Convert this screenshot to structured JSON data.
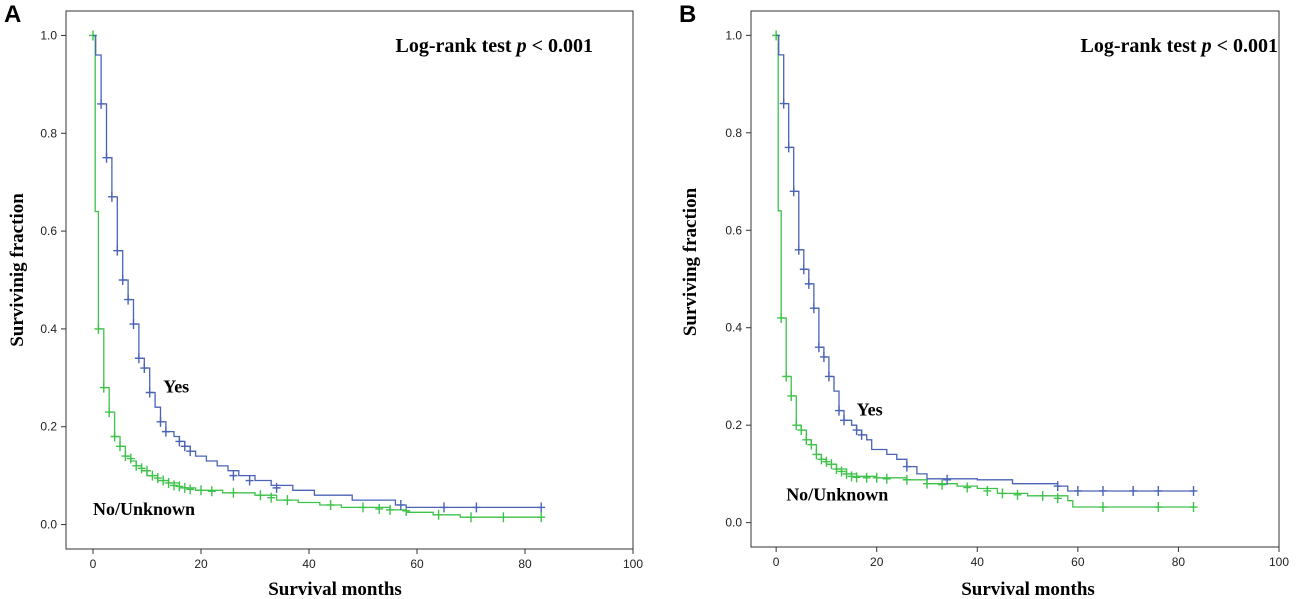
{
  "colors": {
    "yes": "#4a63b5",
    "no_unknown": "#3ec24a",
    "frame": "#333333"
  },
  "chart_data": [
    {
      "type": "line",
      "panel_label": "A",
      "title": "",
      "annotation": {
        "text": "Log-rank test ",
        "p": "p",
        "rest": " < 0.001"
      },
      "xlabel": "Survival months",
      "ylabel": "Survivinig fraction",
      "xlim": [
        -5,
        100
      ],
      "ylim": [
        -0.05,
        1.05
      ],
      "xticks": [
        0,
        20,
        40,
        60,
        80,
        100
      ],
      "yticks": [
        0.0,
        0.2,
        0.4,
        0.6,
        0.8,
        1.0
      ],
      "ytick_labels": [
        "0.0",
        "0.2",
        "0.4",
        "0.6",
        "0.8",
        "1.0"
      ],
      "series": [
        {
          "name": "Yes",
          "label_at": [
            13,
            0.27
          ],
          "points": [
            [
              0,
              1.0
            ],
            [
              0.5,
              0.96
            ],
            [
              1.5,
              0.86
            ],
            [
              2.5,
              0.75
            ],
            [
              3.5,
              0.67
            ],
            [
              4.5,
              0.56
            ],
            [
              5.5,
              0.5
            ],
            [
              6.5,
              0.46
            ],
            [
              7.5,
              0.41
            ],
            [
              8.5,
              0.34
            ],
            [
              9.5,
              0.32
            ],
            [
              10.5,
              0.27
            ],
            [
              11.5,
              0.24
            ],
            [
              12.5,
              0.21
            ],
            [
              13.5,
              0.19
            ],
            [
              15,
              0.18
            ],
            [
              16,
              0.17
            ],
            [
              17,
              0.16
            ],
            [
              18,
              0.15
            ],
            [
              19,
              0.14
            ],
            [
              21,
              0.13
            ],
            [
              23,
              0.12
            ],
            [
              25,
              0.11
            ],
            [
              27,
              0.1
            ],
            [
              30,
              0.09
            ],
            [
              33,
              0.08
            ],
            [
              37,
              0.07
            ],
            [
              41,
              0.06
            ],
            [
              48,
              0.05
            ],
            [
              56,
              0.04
            ],
            [
              58,
              0.035
            ],
            [
              83,
              0.035
            ]
          ],
          "censors": [
            [
              1.5,
              0.86
            ],
            [
              2.5,
              0.75
            ],
            [
              3.5,
              0.67
            ],
            [
              4.5,
              0.56
            ],
            [
              5.5,
              0.5
            ],
            [
              6.5,
              0.46
            ],
            [
              7.5,
              0.41
            ],
            [
              8.5,
              0.34
            ],
            [
              9.5,
              0.32
            ],
            [
              10.5,
              0.27
            ],
            [
              12.5,
              0.21
            ],
            [
              13.5,
              0.19
            ],
            [
              16,
              0.17
            ],
            [
              17,
              0.16
            ],
            [
              18,
              0.15
            ],
            [
              26,
              0.1
            ],
            [
              29,
              0.09
            ],
            [
              34,
              0.075
            ],
            [
              57,
              0.04
            ],
            [
              65,
              0.035
            ],
            [
              71,
              0.035
            ],
            [
              83,
              0.035
            ]
          ]
        },
        {
          "name": "No/Unknown",
          "label_at": [
            0,
            0.02
          ],
          "points": [
            [
              0,
              1.0
            ],
            [
              0.4,
              0.64
            ],
            [
              1,
              0.4
            ],
            [
              2,
              0.28
            ],
            [
              3,
              0.23
            ],
            [
              4,
              0.18
            ],
            [
              5,
              0.16
            ],
            [
              6,
              0.14
            ],
            [
              7,
              0.13
            ],
            [
              8,
              0.12
            ],
            [
              9,
              0.11
            ],
            [
              10,
              0.1
            ],
            [
              12,
              0.09
            ],
            [
              14,
              0.085
            ],
            [
              16,
              0.075
            ],
            [
              19,
              0.07
            ],
            [
              24,
              0.065
            ],
            [
              30,
              0.06
            ],
            [
              34,
              0.05
            ],
            [
              38,
              0.045
            ],
            [
              42,
              0.04
            ],
            [
              46,
              0.035
            ],
            [
              55,
              0.03
            ],
            [
              58,
              0.025
            ],
            [
              63,
              0.02
            ],
            [
              68,
              0.015
            ],
            [
              83,
              0.015
            ]
          ],
          "censors": [
            [
              0,
              1.0
            ],
            [
              1,
              0.4
            ],
            [
              2,
              0.28
            ],
            [
              3,
              0.23
            ],
            [
              4,
              0.18
            ],
            [
              5,
              0.16
            ],
            [
              6,
              0.14
            ],
            [
              7,
              0.135
            ],
            [
              8,
              0.12
            ],
            [
              9,
              0.115
            ],
            [
              10,
              0.11
            ],
            [
              11,
              0.1
            ],
            [
              12,
              0.095
            ],
            [
              13,
              0.09
            ],
            [
              14,
              0.085
            ],
            [
              15,
              0.08
            ],
            [
              16,
              0.078
            ],
            [
              17,
              0.075
            ],
            [
              18,
              0.072
            ],
            [
              20,
              0.07
            ],
            [
              22,
              0.068
            ],
            [
              26,
              0.065
            ],
            [
              31,
              0.06
            ],
            [
              33,
              0.055
            ],
            [
              36,
              0.05
            ],
            [
              44,
              0.04
            ],
            [
              50,
              0.035
            ],
            [
              53,
              0.032
            ],
            [
              55,
              0.03
            ],
            [
              58,
              0.028
            ],
            [
              64,
              0.02
            ],
            [
              70,
              0.015
            ],
            [
              76,
              0.015
            ],
            [
              83,
              0.015
            ]
          ]
        }
      ]
    },
    {
      "type": "line",
      "panel_label": "B",
      "title": "",
      "annotation": {
        "text": "Log-rank test ",
        "p": "p",
        "rest": " < 0.001"
      },
      "xlabel": "Survival months",
      "ylabel": "Surviving fraction",
      "xlim": [
        -5,
        100
      ],
      "ylim": [
        -0.05,
        1.05
      ],
      "xticks": [
        0,
        20,
        40,
        60,
        80,
        100
      ],
      "yticks": [
        0.0,
        0.2,
        0.4,
        0.6,
        0.8,
        1.0
      ],
      "ytick_labels": [
        "0.0",
        "0.2",
        "0.4",
        "0.6",
        "0.8",
        "1.0"
      ],
      "series": [
        {
          "name": "Yes",
          "label_at": [
            16,
            0.22
          ],
          "points": [
            [
              0,
              1.0
            ],
            [
              0.5,
              0.96
            ],
            [
              1.5,
              0.86
            ],
            [
              2.5,
              0.77
            ],
            [
              3.5,
              0.68
            ],
            [
              4.5,
              0.56
            ],
            [
              5.5,
              0.52
            ],
            [
              6.5,
              0.49
            ],
            [
              7.5,
              0.44
            ],
            [
              8.5,
              0.36
            ],
            [
              9.5,
              0.34
            ],
            [
              10.5,
              0.3
            ],
            [
              11.5,
              0.27
            ],
            [
              12.5,
              0.23
            ],
            [
              13.5,
              0.21
            ],
            [
              15,
              0.2
            ],
            [
              16,
              0.19
            ],
            [
              17,
              0.18
            ],
            [
              18,
              0.17
            ],
            [
              19,
              0.15
            ],
            [
              22,
              0.14
            ],
            [
              24,
              0.13
            ],
            [
              26,
              0.115
            ],
            [
              28,
              0.1
            ],
            [
              30,
              0.09
            ],
            [
              40,
              0.088
            ],
            [
              47,
              0.08
            ],
            [
              56,
              0.075
            ],
            [
              58,
              0.065
            ],
            [
              83,
              0.065
            ]
          ],
          "censors": [
            [
              1.5,
              0.86
            ],
            [
              2.5,
              0.77
            ],
            [
              3.5,
              0.68
            ],
            [
              4.5,
              0.56
            ],
            [
              5.5,
              0.52
            ],
            [
              6.5,
              0.49
            ],
            [
              7.5,
              0.44
            ],
            [
              8.5,
              0.36
            ],
            [
              9.5,
              0.34
            ],
            [
              10.5,
              0.3
            ],
            [
              12.5,
              0.23
            ],
            [
              13.5,
              0.21
            ],
            [
              16,
              0.19
            ],
            [
              17,
              0.18
            ],
            [
              26,
              0.115
            ],
            [
              34,
              0.088
            ],
            [
              56,
              0.075
            ],
            [
              60,
              0.065
            ],
            [
              65,
              0.065
            ],
            [
              71,
              0.065
            ],
            [
              76,
              0.065
            ],
            [
              83,
              0.065
            ]
          ]
        },
        {
          "name": "No/Unknown",
          "label_at": [
            2,
            0.045
          ],
          "points": [
            [
              0,
              1.0
            ],
            [
              0.4,
              0.64
            ],
            [
              1,
              0.42
            ],
            [
              2,
              0.3
            ],
            [
              3,
              0.26
            ],
            [
              4,
              0.2
            ],
            [
              5,
              0.19
            ],
            [
              6,
              0.17
            ],
            [
              7,
              0.16
            ],
            [
              8,
              0.14
            ],
            [
              9,
              0.13
            ],
            [
              10,
              0.12
            ],
            [
              12,
              0.11
            ],
            [
              14,
              0.1
            ],
            [
              16,
              0.095
            ],
            [
              20,
              0.092
            ],
            [
              26,
              0.088
            ],
            [
              30,
              0.08
            ],
            [
              36,
              0.075
            ],
            [
              40,
              0.07
            ],
            [
              44,
              0.06
            ],
            [
              50,
              0.055
            ],
            [
              58,
              0.045
            ],
            [
              59,
              0.032
            ],
            [
              83,
              0.032
            ]
          ],
          "censors": [
            [
              0,
              1.0
            ],
            [
              1,
              0.42
            ],
            [
              2,
              0.3
            ],
            [
              3,
              0.26
            ],
            [
              4,
              0.2
            ],
            [
              5,
              0.19
            ],
            [
              6,
              0.17
            ],
            [
              7,
              0.16
            ],
            [
              8,
              0.14
            ],
            [
              9,
              0.13
            ],
            [
              10,
              0.125
            ],
            [
              11,
              0.12
            ],
            [
              12,
              0.11
            ],
            [
              13,
              0.105
            ],
            [
              14,
              0.1
            ],
            [
              15,
              0.095
            ],
            [
              16,
              0.093
            ],
            [
              18,
              0.092
            ],
            [
              20,
              0.092
            ],
            [
              22,
              0.09
            ],
            [
              26,
              0.088
            ],
            [
              30,
              0.08
            ],
            [
              33,
              0.078
            ],
            [
              38,
              0.072
            ],
            [
              42,
              0.065
            ],
            [
              45,
              0.06
            ],
            [
              48,
              0.057
            ],
            [
              53,
              0.055
            ],
            [
              56,
              0.05
            ],
            [
              65,
              0.032
            ],
            [
              76,
              0.032
            ],
            [
              83,
              0.032
            ]
          ]
        }
      ]
    }
  ]
}
